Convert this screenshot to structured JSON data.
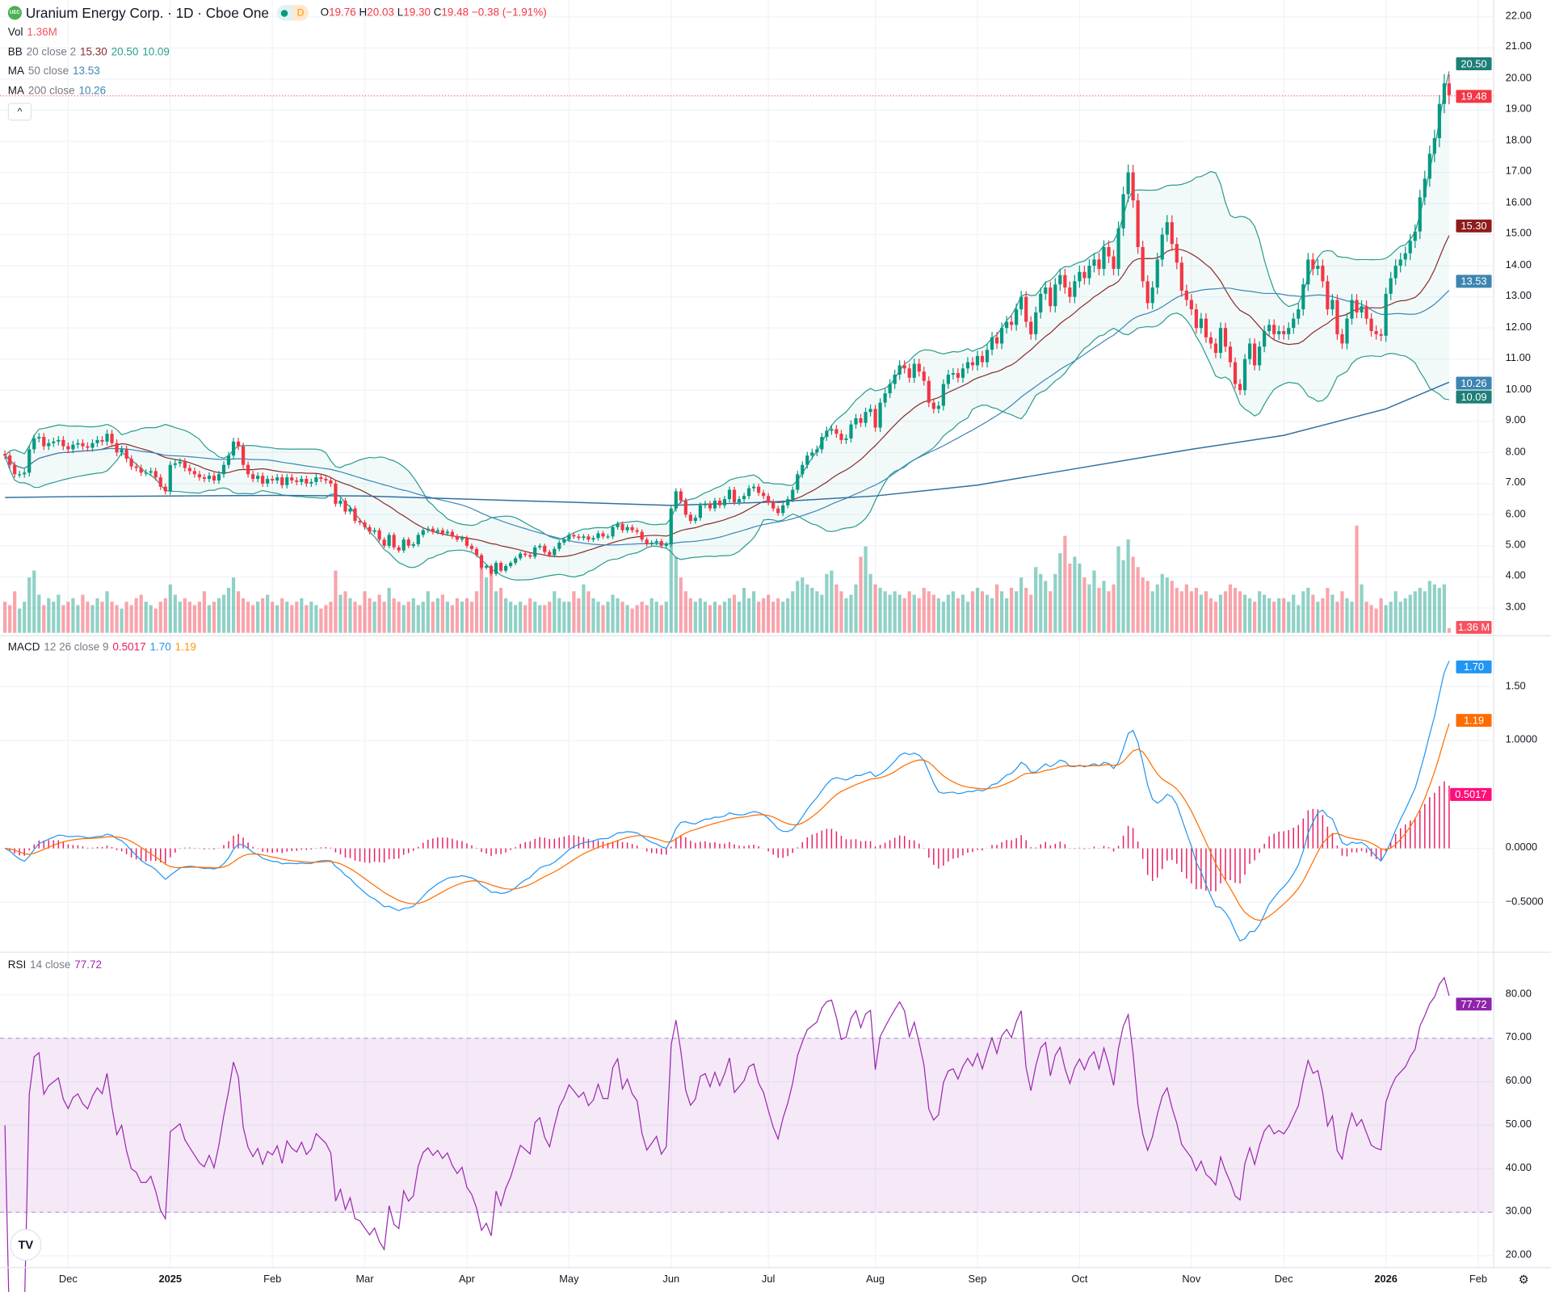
{
  "header": {
    "logo_text": "UEC",
    "symbol_title": "Uranium Energy Corp. · 1D · Cboe One",
    "status_dot": "market-status-icon",
    "status_letter": "D",
    "open_label": "O",
    "open": "19.76",
    "high_label": "H",
    "high": "20.03",
    "low_label": "L",
    "low": "19.30",
    "close_label": "C",
    "close": "19.48",
    "change": "−0.38 (−1.91%)"
  },
  "indicators": {
    "vol": {
      "name": "Vol",
      "value": "1.36M"
    },
    "bb": {
      "name": "BB",
      "params": "20 close 2",
      "basis": "15.30",
      "upper": "20.50",
      "lower": "10.09"
    },
    "ma50": {
      "name": "MA",
      "params": "50 close",
      "value": "13.53"
    },
    "ma200": {
      "name": "MA",
      "params": "200 close",
      "value": "10.26"
    },
    "macd": {
      "name": "MACD",
      "params": "12 26 close 9",
      "hist": "0.5017",
      "macd": "1.70",
      "signal": "1.19"
    },
    "rsi": {
      "name": "RSI",
      "params": "14 close",
      "value": "77.72"
    }
  },
  "collapse_button": "^",
  "badges": {
    "bb_upper": "20.50",
    "last_price": "19.48",
    "bb_basis": "15.30",
    "ma50": "13.53",
    "ma200": "10.26",
    "bb_lower": "10.09",
    "volume": "1.36 M",
    "macd": "1.70",
    "signal": "1.19",
    "hist": "0.5017",
    "rsi": "77.72"
  },
  "colors": {
    "up": "#089981",
    "down": "#f23645",
    "bb_band": "#2a9d8f",
    "bb_basis": "#8b2c2c",
    "ma50": "#3d87b5",
    "ma200": "#2f6f9f",
    "macd": "#2196f3",
    "signal": "#ff6d00",
    "hist": "#e91e63",
    "rsi": "#9c27b0"
  },
  "chart_data": {
    "type": "candlestick",
    "price_axis_ticks": [
      "22.00",
      "21.00",
      "20.00",
      "19.00",
      "18.00",
      "17.00",
      "16.00",
      "15.00",
      "14.00",
      "13.00",
      "12.00",
      "11.00",
      "10.00",
      "9.00",
      "8.00",
      "7.00",
      "6.00",
      "5.00",
      "4.00",
      "3.00"
    ],
    "macd_axis_ticks": [
      "1.50",
      "1.0000",
      "0.0000",
      "−0.5000"
    ],
    "rsi_axis_ticks": [
      "80.00",
      "70.00",
      "60.00",
      "50.00",
      "40.00",
      "30.00",
      "20.00"
    ],
    "rsi_band": [
      30,
      70
    ],
    "ylim": [
      2.5,
      22.5
    ],
    "future_label": "Feb",
    "months": [
      {
        "label": "",
        "closes": [
          7.9,
          7.6,
          7.3,
          7.3,
          7.35,
          8.1,
          8.45,
          8.5,
          8.2,
          8.3,
          8.35,
          8.4,
          8.2
        ],
        "volumes_m": [
          9,
          8,
          12,
          7,
          9,
          16,
          18,
          11,
          8,
          10,
          9,
          11,
          8
        ],
        "ma200": 6.55
      },
      {
        "label": "Dec",
        "closes": [
          8.1,
          8.25,
          8.3,
          8.2,
          8.15,
          8.3,
          8.4,
          8.35,
          8.6,
          8.3,
          8.0,
          8.1,
          7.8,
          7.55,
          7.5,
          7.35,
          7.35,
          7.4,
          7.2,
          6.9,
          6.75
        ],
        "volumes_m": [
          9,
          10,
          8,
          11,
          9,
          8,
          10,
          9,
          12,
          9,
          8,
          7,
          9,
          8,
          10,
          11,
          9,
          8,
          7,
          9,
          10
        ],
        "ma200": 6.58
      },
      {
        "label": "2025",
        "closes": [
          7.6,
          7.65,
          7.7,
          7.5,
          7.4,
          7.3,
          7.2,
          7.15,
          7.25,
          7.1,
          7.3,
          7.6,
          7.9,
          8.35,
          8.2,
          7.6,
          7.3,
          7.15,
          7.25,
          7.0,
          7.15
        ],
        "volumes_m": [
          14,
          11,
          9,
          10,
          9,
          8,
          9,
          12,
          8,
          9,
          10,
          11,
          13,
          16,
          12,
          10,
          9,
          8,
          9,
          10,
          11
        ],
        "ma200": 6.6
      },
      {
        "label": "Feb",
        "closes": [
          7.1,
          7.2,
          6.95,
          7.2,
          7.1,
          7.05,
          7.15,
          7.0,
          7.05,
          7.2,
          7.15,
          7.1,
          7.0,
          6.35,
          6.45,
          6.1,
          6.2,
          5.8,
          5.75
        ],
        "volumes_m": [
          9,
          8,
          10,
          9,
          8,
          9,
          10,
          8,
          9,
          8,
          7,
          8,
          9,
          18,
          11,
          12,
          10,
          9,
          8
        ],
        "ma200": 6.62
      },
      {
        "label": "Mar",
        "closes": [
          5.6,
          5.45,
          5.5,
          5.2,
          5.0,
          5.35,
          4.95,
          4.85,
          5.2,
          5.0,
          5.05,
          5.35,
          5.5,
          5.55,
          5.45,
          5.5,
          5.4,
          5.45,
          5.3,
          5.2,
          5.25
        ],
        "volumes_m": [
          12,
          10,
          9,
          11,
          9,
          13,
          10,
          9,
          8,
          9,
          10,
          8,
          9,
          12,
          9,
          10,
          11,
          9,
          8,
          10,
          9
        ],
        "ma200": 6.6
      },
      {
        "label": "Apr",
        "closes": [
          5.0,
          4.9,
          4.7,
          4.3,
          4.35,
          4.1,
          4.45,
          4.2,
          4.35,
          4.45,
          4.6,
          4.75,
          4.7,
          4.65,
          4.95,
          5.0,
          4.8,
          4.7,
          4.9,
          5.1,
          5.2
        ],
        "volumes_m": [
          10,
          9,
          12,
          20,
          16,
          17,
          12,
          13,
          10,
          9,
          8,
          9,
          8,
          10,
          9,
          8,
          8,
          9,
          12,
          10,
          9
        ],
        "ma200": 6.5
      },
      {
        "label": "May",
        "closes": [
          5.35,
          5.3,
          5.25,
          5.3,
          5.2,
          5.25,
          5.4,
          5.3,
          5.3,
          5.6,
          5.7,
          5.5,
          5.6,
          5.5,
          5.45,
          5.2,
          5.05,
          5.1,
          5.15,
          5.0,
          5.05
        ],
        "volumes_m": [
          9,
          12,
          10,
          14,
          12,
          10,
          9,
          8,
          9,
          11,
          10,
          9,
          8,
          7,
          8,
          9,
          8,
          10,
          9,
          8,
          9
        ],
        "ma200": 6.4
      },
      {
        "label": "Jun",
        "closes": [
          6.2,
          6.75,
          6.45,
          6.0,
          5.8,
          5.9,
          6.3,
          6.35,
          6.2,
          6.45,
          6.3,
          6.5,
          6.8,
          6.4,
          6.5,
          6.6,
          6.85,
          6.9,
          6.7,
          6.6
        ],
        "volumes_m": [
          33,
          22,
          16,
          12,
          10,
          9,
          10,
          9,
          8,
          9,
          8,
          9,
          10,
          11,
          9,
          13,
          10,
          12,
          9,
          10
        ],
        "ma200": 6.3
      },
      {
        "label": "Jul",
        "closes": [
          6.4,
          6.2,
          6.05,
          6.3,
          6.5,
          6.8,
          7.3,
          7.6,
          7.9,
          8.0,
          8.1,
          8.5,
          8.7,
          8.75,
          8.6,
          8.4,
          8.45,
          8.9,
          9.1,
          8.95,
          9.3,
          9.4
        ],
        "volumes_m": [
          11,
          9,
          10,
          9,
          10,
          12,
          15,
          16,
          14,
          13,
          12,
          11,
          17,
          18,
          14,
          12,
          10,
          11,
          14,
          22,
          25,
          17
        ],
        "ma200": 6.4
      },
      {
        "label": "Aug",
        "closes": [
          8.8,
          9.6,
          9.9,
          10.2,
          10.5,
          10.8,
          10.7,
          10.4,
          10.85,
          10.6,
          10.3,
          9.6,
          9.4,
          9.5,
          10.2,
          10.5,
          10.55,
          10.4,
          10.7,
          10.9,
          10.8
        ],
        "volumes_m": [
          14,
          13,
          12,
          11,
          12,
          11,
          10,
          12,
          11,
          10,
          13,
          12,
          11,
          10,
          9,
          11,
          12,
          10,
          11,
          9,
          12
        ],
        "ma200": 6.6
      },
      {
        "label": "Sep",
        "closes": [
          11.1,
          10.9,
          11.3,
          11.7,
          11.5,
          12.0,
          12.2,
          12.1,
          12.6,
          13.0,
          12.2,
          11.8,
          12.5,
          13.1,
          13.3,
          12.7,
          13.4,
          13.7,
          13.3,
          13.0,
          13.5
        ],
        "volumes_m": [
          13,
          12,
          11,
          10,
          14,
          12,
          10,
          13,
          12,
          16,
          13,
          11,
          19,
          17,
          15,
          12,
          17,
          23,
          28,
          20,
          22
        ],
        "ma200": 6.95
      },
      {
        "label": "Oct",
        "closes": [
          13.8,
          13.6,
          14.0,
          14.2,
          13.9,
          14.6,
          14.3,
          13.9,
          15.2,
          16.3,
          17.0,
          16.1,
          14.6,
          13.5,
          12.8,
          13.3,
          14.2,
          15.0,
          15.4,
          14.7,
          14.1,
          13.2,
          12.9
        ],
        "volumes_m": [
          20,
          16,
          14,
          18,
          13,
          15,
          12,
          14,
          25,
          21,
          27,
          22,
          19,
          16,
          15,
          12,
          14,
          17,
          16,
          15,
          13,
          12,
          14
        ],
        "ma200": 7.5
      },
      {
        "label": "Nov",
        "closes": [
          12.6,
          12.0,
          12.3,
          11.7,
          11.5,
          11.2,
          12.0,
          11.4,
          10.9,
          10.2,
          10.0,
          11.0,
          11.5,
          10.8,
          11.4,
          11.9,
          12.1,
          11.8,
          11.9
        ],
        "volumes_m": [
          12,
          13,
          11,
          12,
          10,
          9,
          11,
          12,
          14,
          13,
          12,
          11,
          10,
          9,
          12,
          11,
          10,
          9,
          10
        ],
        "ma200": 8.1
      },
      {
        "label": "Dec",
        "closes": [
          11.8,
          12.0,
          12.3,
          12.6,
          13.4,
          14.2,
          13.9,
          14.0,
          13.5,
          12.6,
          12.9,
          11.8,
          11.5,
          12.3,
          12.9,
          12.5,
          12.7,
          12.3,
          11.9,
          11.8,
          11.75
        ],
        "volumes_m": [
          10,
          9,
          11,
          8,
          12,
          13,
          11,
          9,
          10,
          13,
          11,
          9,
          12,
          10,
          9,
          31,
          14,
          9,
          8,
          7,
          10
        ],
        "ma200": 8.55
      },
      {
        "label": "2026",
        "closes": [
          13.1,
          13.6,
          14.0,
          14.2,
          14.4,
          14.8,
          15.1,
          16.2,
          16.8,
          17.6,
          18.1,
          19.2,
          19.86,
          19.48
        ],
        "volumes_m": [
          8,
          9,
          12,
          9,
          10,
          11,
          12,
          13,
          12,
          15,
          14,
          13,
          14,
          1.36
        ],
        "ma200": 9.4
      }
    ],
    "last_ma200": 10.26
  }
}
